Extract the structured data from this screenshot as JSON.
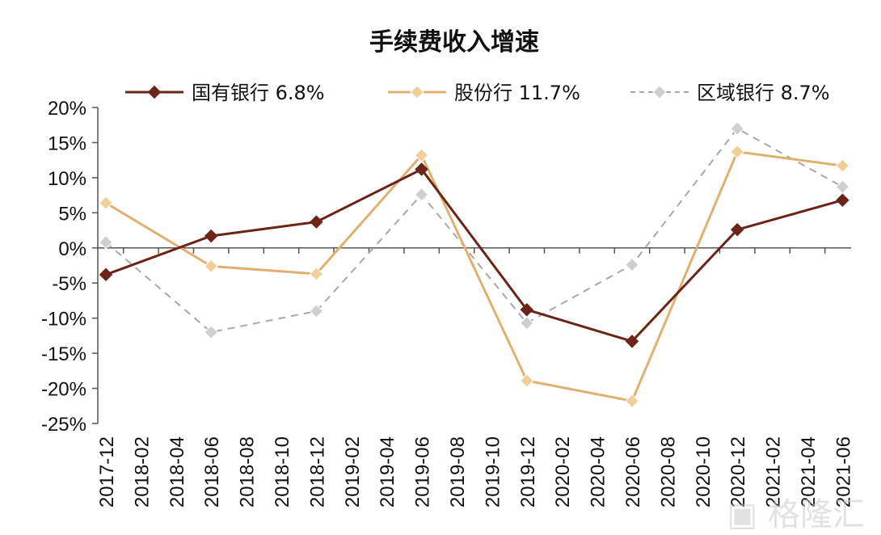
{
  "chart_data": {
    "type": "line",
    "title": "手续费收入增速",
    "xlabel": "",
    "ylabel": "",
    "categories": [
      "2017-12",
      "2018-02",
      "2018-04",
      "2018-06",
      "2018-08",
      "2018-10",
      "2018-12",
      "2019-02",
      "2019-04",
      "2019-06",
      "2019-08",
      "2019-10",
      "2019-12",
      "2020-02",
      "2020-04",
      "2020-06",
      "2020-08",
      "2020-10",
      "2020-12",
      "2021-02",
      "2021-04",
      "2021-06"
    ],
    "x": [
      "2017-12",
      "2018-06",
      "2018-12",
      "2019-06",
      "2019-12",
      "2020-06",
      "2020-12",
      "2021-06"
    ],
    "ylim": [
      -25,
      20
    ],
    "yticks": [
      "20%",
      "15%",
      "10%",
      "5%",
      "0%",
      "-5%",
      "-10%",
      "-15%",
      "-20%",
      "-25%"
    ],
    "grid": false,
    "legend_position": "top",
    "series": [
      {
        "name": "国有银行",
        "legend_label": "6.8%",
        "color": "#6b2418",
        "style": "solid",
        "values": [
          -3.8,
          1.7,
          3.7,
          11.2,
          -8.8,
          -13.3,
          2.6,
          6.8
        ]
      },
      {
        "name": "股份行",
        "legend_label": "11.7%",
        "color": "#e0b070",
        "style": "solid",
        "values": [
          6.4,
          -2.6,
          -3.7,
          13.2,
          -18.9,
          -21.8,
          13.7,
          11.7
        ]
      },
      {
        "name": "区域银行",
        "legend_label": "8.7%",
        "color": "#a8a8a8",
        "style": "dashed",
        "values": [
          0.8,
          -12.0,
          -9.0,
          7.6,
          -10.7,
          -2.4,
          17.0,
          8.7
        ]
      }
    ]
  },
  "watermark": "格隆汇"
}
